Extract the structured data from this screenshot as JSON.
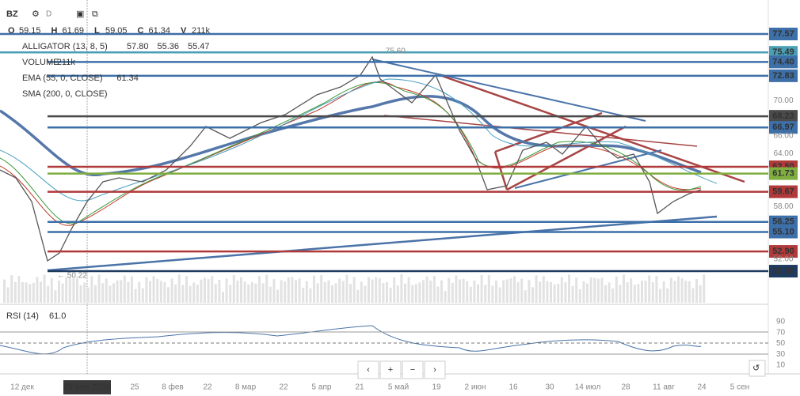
{
  "header": {
    "symbol": "BZ",
    "interval": "D",
    "ohlcv": [
      {
        "key": "O",
        "value": "59.15"
      },
      {
        "key": "H",
        "value": "61.69"
      },
      {
        "key": "L",
        "value": "59.05"
      },
      {
        "key": "C",
        "value": "61.34"
      },
      {
        "key": "V",
        "value": "211k"
      }
    ]
  },
  "legend": [
    {
      "name": "ALLIGATOR (13, 8, 5)",
      "values": [
        "57.80",
        "55.36",
        "55.47"
      ],
      "colors": [
        "#2f6fb3",
        "#c0392b",
        "#3a9a3a"
      ]
    },
    {
      "name": "VOLUME",
      "values": [
        "211k"
      ],
      "colors": [
        "#aaaaaa"
      ]
    },
    {
      "name": "EMA (55, 0, CLOSE)",
      "values": [
        "61.34"
      ],
      "colors": [
        "#2f6fb3"
      ]
    },
    {
      "name": "SMA (200, 0, CLOSE)",
      "values": [],
      "colors": []
    }
  ],
  "annotations": [
    "← 75.60",
    "← 50.22"
  ],
  "price_labels": [
    {
      "label": "77.57",
      "color": "#3d6fa8"
    },
    {
      "label": "75.49",
      "color": "#4a9fb5"
    },
    {
      "label": "74.40",
      "color": "#3d6fa8"
    },
    {
      "label": "72.83",
      "color": "#3d6fa8"
    },
    {
      "label": "68.23",
      "color": "#4a4a4a"
    },
    {
      "label": "66.97",
      "color": "#3d6fa8"
    },
    {
      "label": "62.50",
      "color": "#b03a3a"
    },
    {
      "label": "61.73",
      "color": "#7fae3f"
    },
    {
      "label": "59.67",
      "color": "#b03a3a"
    },
    {
      "label": "56.25",
      "color": "#3d6fa8"
    },
    {
      "label": "55.10",
      "color": "#3d6fa8"
    },
    {
      "label": "52.90",
      "color": "#b03a3a"
    },
    {
      "label": "50.66",
      "color": "#1f3a5f"
    }
  ],
  "price_axis": [
    "70.00",
    "66.00",
    "64.00",
    "58.00",
    "52.00"
  ],
  "rsi": {
    "name": "RSI (14)",
    "value": "61.0",
    "ticks": [
      "90",
      "70",
      "50",
      "30",
      "10"
    ]
  },
  "time_axis": {
    "labels": [
      "12 дек",
      "29 янв 2019",
      "25",
      "8 фев",
      "22",
      "8 мар",
      "22",
      "5 апр",
      "21",
      "5 май",
      "19",
      "2 июн",
      "16",
      "30",
      "14 июл",
      "28",
      "11 авг",
      "24",
      "5 сен"
    ]
  },
  "toolbar": [
    "‹",
    "+",
    "−",
    "›"
  ]
}
